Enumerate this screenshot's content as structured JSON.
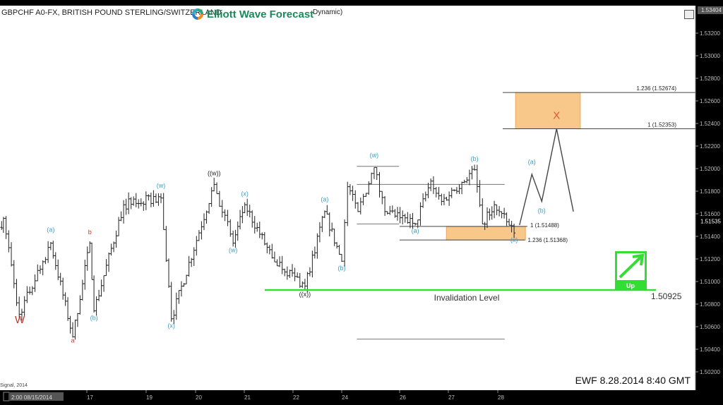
{
  "header": {
    "title": "GBPCHF A0-FX, BRITISH POUND STERLING/SWITZERLAND",
    "indicator_suffix": "Dynamic)",
    "logo_text": "Elliott Wave Forecast"
  },
  "footer": {
    "stamp": "EWF 8.28.2014 8:40 GMT",
    "copyright": "Signal, 2014",
    "first_date_label": "2:00 08/15/2014"
  },
  "colors": {
    "background": "#000000",
    "plot": "#ffffff",
    "bars": "#222222",
    "blue_labels": "#3a9fc8",
    "red_labels": "#c0392b",
    "fib_box": "#f8c88a",
    "invalidation": "#33dd33",
    "target_x": "#e8552a"
  },
  "chart_data": {
    "type": "ohlc",
    "symbol": "GBPCHF",
    "y_ticks": [
      "1.53200",
      "1.53000",
      "1.52800",
      "1.52600",
      "1.52400",
      "1.52200",
      "1.52000",
      "1.51800",
      "1.51600",
      "1.51400",
      "1.51200",
      "1.51000",
      "1.50800",
      "1.50600",
      "1.50400",
      "1.50200"
    ],
    "y_range": [
      1.5005,
      1.5345
    ],
    "last_high_tag": "1.53404",
    "last_price_tag": "1.51535",
    "x_ticks": [
      {
        "day": 15,
        "label": "2:00 08/15/2014"
      },
      {
        "day": 17,
        "label": "17"
      },
      {
        "day": 19,
        "label": "19"
      },
      {
        "day": 20,
        "label": "20"
      },
      {
        "day": 21,
        "label": "21"
      },
      {
        "day": 22,
        "label": "22"
      },
      {
        "day": 24,
        "label": "24"
      },
      {
        "day": 26,
        "label": "26"
      },
      {
        "day": 27,
        "label": "27"
      },
      {
        "day": 28,
        "label": "28"
      }
    ],
    "price_path": [
      [
        14.35,
        1.5148
      ],
      [
        14.46,
        1.5156
      ],
      [
        14.94,
        1.5071
      ],
      [
        15.9,
        1.5134
      ],
      [
        16.57,
        1.5051
      ],
      [
        17.1,
        1.5134
      ],
      [
        17.24,
        1.5074
      ],
      [
        18.24,
        1.5168
      ],
      [
        19.3,
        1.5174
      ],
      [
        19.51,
        1.5067
      ],
      [
        20.38,
        1.5186
      ],
      [
        20.77,
        1.5134
      ],
      [
        21.01,
        1.5168
      ],
      [
        21.57,
        1.5121
      ],
      [
        22.49,
        1.5096
      ],
      [
        23.3,
        1.5162
      ],
      [
        24.0,
        1.5118
      ],
      [
        24.2,
        1.5184
      ],
      [
        24.56,
        1.5162
      ],
      [
        25.12,
        1.5201
      ],
      [
        25.49,
        1.5162
      ],
      [
        26.32,
        1.5151
      ],
      [
        26.64,
        1.5189
      ],
      [
        26.86,
        1.5171
      ],
      [
        27.53,
        1.5199
      ],
      [
        27.69,
        1.5151
      ],
      [
        27.93,
        1.5168
      ],
      [
        28.33,
        1.5143
      ]
    ],
    "projection": [
      [
        28.44,
        1.515
      ],
      [
        28.69,
        1.5195
      ],
      [
        28.89,
        1.5171
      ],
      [
        29.19,
        1.52353
      ],
      [
        29.53,
        1.5162
      ]
    ],
    "wave_labels": [
      {
        "text": "W",
        "day": 14.96,
        "price": 1.5063,
        "color": "red",
        "size": "big"
      },
      {
        "text": "(a)",
        "day": 15.9,
        "price": 1.5144,
        "color": "blue"
      },
      {
        "text": "a",
        "day": 16.57,
        "price": 1.5046,
        "color": "red"
      },
      {
        "text": "b",
        "day": 17.1,
        "price": 1.5142,
        "color": "red"
      },
      {
        "text": "(b)",
        "day": 17.24,
        "price": 1.5066,
        "color": "blue"
      },
      {
        "text": "(w)",
        "day": 19.3,
        "price": 1.5183,
        "color": "blue"
      },
      {
        "text": "(x)",
        "day": 19.51,
        "price": 1.5059,
        "color": "blue"
      },
      {
        "text": "((w))",
        "day": 20.38,
        "price": 1.5194,
        "color": "black"
      },
      {
        "text": "(w)",
        "day": 20.77,
        "price": 1.5126,
        "color": "blue"
      },
      {
        "text": "(x)",
        "day": 21.01,
        "price": 1.5176,
        "color": "blue"
      },
      {
        "text": "((x))",
        "day": 22.49,
        "price": 1.5087,
        "color": "black"
      },
      {
        "text": "(a)",
        "day": 23.3,
        "price": 1.5171,
        "color": "blue"
      },
      {
        "text": "(b)",
        "day": 24.0,
        "price": 1.511,
        "color": "blue"
      },
      {
        "text": "(w)",
        "day": 25.12,
        "price": 1.521,
        "color": "blue"
      },
      {
        "text": "(a)",
        "day": 26.32,
        "price": 1.5143,
        "color": "blue"
      },
      {
        "text": "(b)",
        "day": 27.53,
        "price": 1.5207,
        "color": "blue"
      },
      {
        "text": "(x)",
        "day": 28.33,
        "price": 1.5135,
        "color": "blue"
      },
      {
        "text": "(a)",
        "day": 28.69,
        "price": 1.5204,
        "color": "blue"
      },
      {
        "text": "(b)",
        "day": 28.89,
        "price": 1.5161,
        "color": "blue"
      },
      {
        "text": "X",
        "day": 29.19,
        "price": 1.5244,
        "color": "orange",
        "size": "big"
      }
    ],
    "fib_levels": [
      {
        "label": "1.236 (1.52674)",
        "price": 1.52674,
        "from_day": 28.1,
        "to_day": "axis"
      },
      {
        "label": "1 (1.52353)",
        "price": 1.52353,
        "from_day": 28.1,
        "to_day": "axis"
      },
      {
        "label": "1 (1.51488)",
        "price": 1.51488,
        "from_day": 26.0,
        "to_day": 28.6
      },
      {
        "label": "1.236 (1.51368)",
        "price": 1.51368,
        "from_day": 26.0,
        "to_day": 28.55
      }
    ],
    "fib_zones": [
      {
        "from_day": 28.36,
        "to_day": 29.67,
        "low": 1.52353,
        "high": 1.52674
      },
      {
        "from_day": 26.96,
        "to_day": 28.56,
        "low": 1.51368,
        "high": 1.51488
      }
    ],
    "reference_lines": [
      {
        "price": 1.5202,
        "from_day": 24.52,
        "to_day": 25.98
      },
      {
        "price": 1.5186,
        "from_day": 24.52,
        "to_day": 28.14
      },
      {
        "price": 1.5151,
        "from_day": 24.52,
        "to_day": 25.98
      },
      {
        "price": 1.5049,
        "from_day": 24.52,
        "to_day": 28.14
      }
    ],
    "invalidation": {
      "label": "Invalidation Level",
      "price": 1.50925,
      "value_label": "1.50925",
      "from_day": 21.42,
      "to_day": 31.2
    },
    "direction_badge": {
      "label": "Up",
      "direction": "up"
    }
  }
}
